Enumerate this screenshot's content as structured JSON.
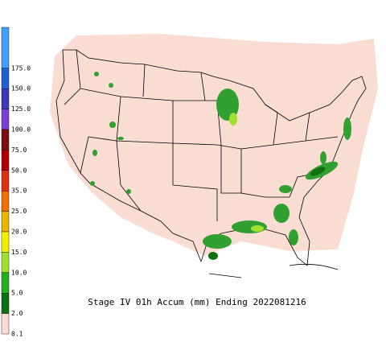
{
  "title": "Stage IV 01h Accum (mm) Ending 2022081216",
  "legend": {
    "labels": [
      "175.0",
      "150.0",
      "125.0",
      "100.0",
      "75.0",
      "50.0",
      "35.0",
      "25.0",
      "20.0",
      "15.0",
      "10.0",
      "5.0",
      "2.0",
      "0.1"
    ],
    "colors": [
      "#3fa0ff",
      "#1f5fd0",
      "#3a3ab8",
      "#7a3fd0",
      "#7a1010",
      "#b00000",
      "#e03010",
      "#f07000",
      "#e8b800",
      "#f0f000",
      "#a0e030",
      "#20b020",
      "#107010",
      "#f9dcd2"
    ]
  }
}
